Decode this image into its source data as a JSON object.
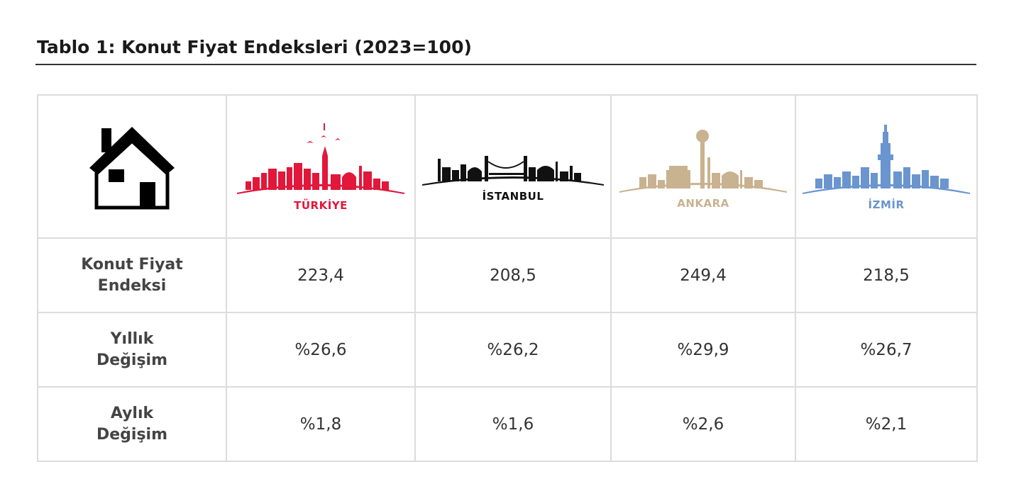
{
  "title": "Tablo 1: Konut Fiyat Endeksleri (2023=100)",
  "colors": {
    "turkiye": "#e2173a",
    "istanbul": "#111111",
    "ankara": "#c9b28f",
    "izmir": "#6a95cf"
  },
  "header": {
    "icon": "house-icon",
    "cities": [
      {
        "name": "TÜRKİYE",
        "icon": "turkiye-skyline-icon"
      },
      {
        "name": "İSTANBUL",
        "icon": "istanbul-skyline-icon"
      },
      {
        "name": "ANKARA",
        "icon": "ankara-skyline-icon"
      },
      {
        "name": "İZMİR",
        "icon": "izmir-skyline-icon"
      }
    ]
  },
  "rows": [
    {
      "label_line1": "Konut Fiyat",
      "label_line2": "Endeksi",
      "values": [
        "223,4",
        "208,5",
        "249,4",
        "218,5"
      ]
    },
    {
      "label_line1": "Yıllık",
      "label_line2": "Değişim",
      "values": [
        "%26,6",
        "%26,2",
        "%29,9",
        "%26,7"
      ]
    },
    {
      "label_line1": "Aylık",
      "label_line2": "Değişim",
      "values": [
        "%1,8",
        "%1,6",
        "%2,6",
        "%2,1"
      ]
    }
  ]
}
